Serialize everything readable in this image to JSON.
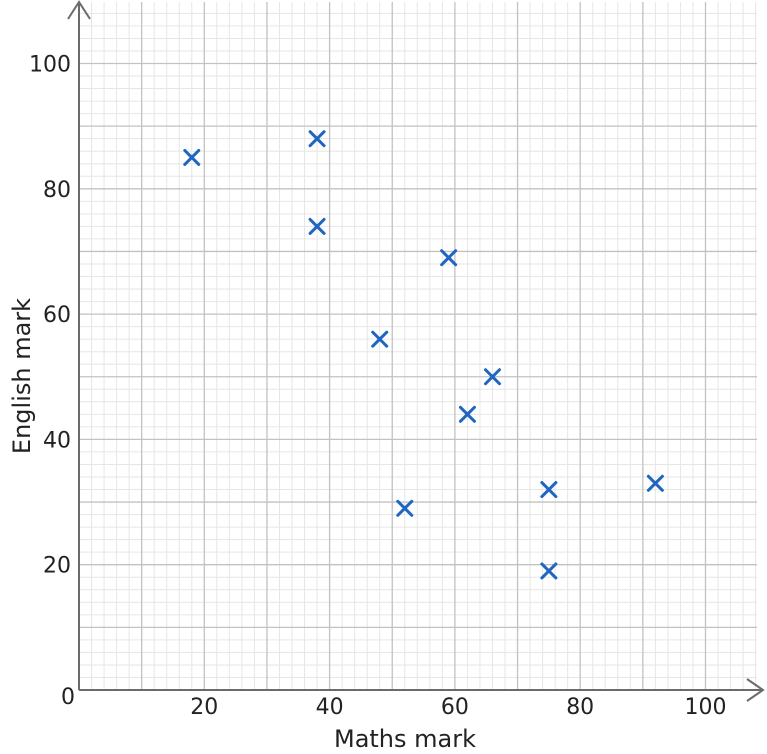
{
  "chart_data": {
    "type": "scatter",
    "title": "",
    "xlabel": "Maths mark",
    "ylabel": "English mark",
    "xlim": [
      0,
      110
    ],
    "ylim": [
      0,
      100
    ],
    "origin_label": "0",
    "x_ticks": [
      20,
      40,
      60,
      80,
      100
    ],
    "y_ticks": [
      20,
      40,
      60,
      80,
      100
    ],
    "grid": true,
    "marker": "x",
    "colors": {
      "marker": "#1f66c1",
      "axis": "#6b6b6b",
      "grid_major": "#c2c2c2",
      "grid_minor": "#e6e6e6"
    },
    "points": [
      {
        "x": 18,
        "y": 85
      },
      {
        "x": 38,
        "y": 88
      },
      {
        "x": 38,
        "y": 74
      },
      {
        "x": 48,
        "y": 56
      },
      {
        "x": 52,
        "y": 29
      },
      {
        "x": 59,
        "y": 69
      },
      {
        "x": 62,
        "y": 44
      },
      {
        "x": 66,
        "y": 50
      },
      {
        "x": 75,
        "y": 32
      },
      {
        "x": 75,
        "y": 19
      },
      {
        "x": 92,
        "y": 33
      }
    ]
  }
}
